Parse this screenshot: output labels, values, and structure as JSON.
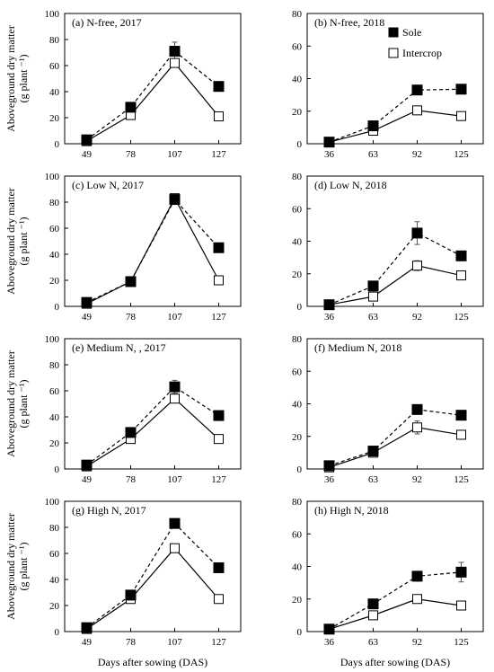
{
  "figure": {
    "ylabel_line1": "Aboveground dry matter",
    "ylabel_line2": "(g plant ⁻¹)",
    "xlabel": "Days after sowing (DAS)",
    "legend": {
      "sole": "Sole",
      "intercrop": "Intercrop"
    }
  },
  "colors": {
    "sole": "#000000",
    "intercrop": "#ffffff",
    "line": "#000000"
  },
  "chart_data": [
    {
      "type": "line",
      "title": "(a) N-free, 2017",
      "categories": [
        "49",
        "78",
        "107",
        "127"
      ],
      "ylim": [
        0,
        100
      ],
      "yticks": [
        0,
        20,
        40,
        60,
        80,
        100
      ],
      "series": [
        {
          "name": "Sole",
          "style": "dashed",
          "marker": "filled-square",
          "values": [
            3,
            28,
            71,
            44
          ],
          "errors": [
            0,
            0,
            7,
            0
          ]
        },
        {
          "name": "Intercrop",
          "style": "solid",
          "marker": "open-square",
          "values": [
            2,
            22,
            62,
            21
          ],
          "errors": [
            0,
            0,
            0,
            0
          ]
        }
      ]
    },
    {
      "type": "line",
      "title": "(b) N-free, 2018",
      "categories": [
        "36",
        "63",
        "92",
        "125"
      ],
      "ylim": [
        0,
        80
      ],
      "yticks": [
        0,
        20,
        40,
        60,
        80
      ],
      "series": [
        {
          "name": "Sole",
          "style": "dashed",
          "marker": "filled-square",
          "values": [
            1,
            11,
            33,
            33.5
          ],
          "errors": [
            0,
            0,
            2,
            0
          ]
        },
        {
          "name": "Intercrop",
          "style": "solid",
          "marker": "open-square",
          "values": [
            1,
            8,
            20.5,
            17
          ],
          "errors": [
            0,
            0,
            0,
            0
          ]
        }
      ]
    },
    {
      "type": "line",
      "title": "(c) Low N, 2017",
      "categories": [
        "49",
        "78",
        "107",
        "127"
      ],
      "ylim": [
        0,
        100
      ],
      "yticks": [
        0,
        20,
        40,
        60,
        80,
        100
      ],
      "series": [
        {
          "name": "Sole",
          "style": "dashed",
          "marker": "filled-square",
          "values": [
            3,
            19,
            82,
            45
          ],
          "errors": [
            0,
            0,
            0,
            0
          ]
        },
        {
          "name": "Intercrop",
          "style": "solid",
          "marker": "open-square",
          "values": [
            2,
            19,
            83,
            20
          ],
          "errors": [
            0,
            0,
            0,
            0
          ]
        }
      ]
    },
    {
      "type": "line",
      "title": "(d) Low N,  2018",
      "categories": [
        "36",
        "63",
        "92",
        "125"
      ],
      "ylim": [
        0,
        80
      ],
      "yticks": [
        0,
        20,
        40,
        60,
        80
      ],
      "series": [
        {
          "name": "Sole",
          "style": "dashed",
          "marker": "filled-square",
          "values": [
            1,
            12.5,
            45,
            31
          ],
          "errors": [
            0,
            0,
            7,
            2
          ]
        },
        {
          "name": "Intercrop",
          "style": "solid",
          "marker": "open-square",
          "values": [
            1,
            6,
            25,
            19
          ],
          "errors": [
            0,
            0,
            3,
            0
          ]
        }
      ]
    },
    {
      "type": "line",
      "title": "(e) Medium N, , 2017",
      "categories": [
        "49",
        "78",
        "107",
        "127"
      ],
      "ylim": [
        0,
        100
      ],
      "yticks": [
        0,
        20,
        40,
        60,
        80,
        100
      ],
      "series": [
        {
          "name": "Sole",
          "style": "dashed",
          "marker": "filled-square",
          "values": [
            3,
            28,
            63,
            41
          ],
          "errors": [
            0,
            0,
            5,
            0
          ]
        },
        {
          "name": "Intercrop",
          "style": "solid",
          "marker": "open-square",
          "values": [
            2,
            23,
            54,
            23
          ],
          "errors": [
            0,
            0,
            0,
            0
          ]
        }
      ]
    },
    {
      "type": "line",
      "title": "(f) Medium N, 2018",
      "categories": [
        "36",
        "63",
        "92",
        "125"
      ],
      "ylim": [
        0,
        80
      ],
      "yticks": [
        0,
        20,
        40,
        60,
        80
      ],
      "series": [
        {
          "name": "Sole",
          "style": "dashed",
          "marker": "filled-square",
          "values": [
            2,
            11,
            36.5,
            33
          ],
          "errors": [
            0,
            0,
            0,
            0
          ]
        },
        {
          "name": "Intercrop",
          "style": "solid",
          "marker": "open-square",
          "values": [
            1,
            10,
            25.5,
            21
          ],
          "errors": [
            0,
            0,
            4,
            0
          ]
        }
      ]
    },
    {
      "type": "line",
      "title": "(g) High N, 2017",
      "categories": [
        "49",
        "78",
        "107",
        "127"
      ],
      "ylim": [
        0,
        100
      ],
      "yticks": [
        0,
        20,
        40,
        60,
        80,
        100
      ],
      "series": [
        {
          "name": "Sole",
          "style": "dashed",
          "marker": "filled-square",
          "values": [
            3,
            28,
            83,
            49
          ],
          "errors": [
            0,
            0,
            0,
            0
          ]
        },
        {
          "name": "Intercrop",
          "style": "solid",
          "marker": "open-square",
          "values": [
            2,
            25,
            64,
            25
          ],
          "errors": [
            0,
            0,
            0,
            0
          ]
        }
      ]
    },
    {
      "type": "line",
      "title": "(h) High N, 2018",
      "categories": [
        "36",
        "63",
        "92",
        "125"
      ],
      "ylim": [
        0,
        80
      ],
      "yticks": [
        0,
        20,
        40,
        60,
        80
      ],
      "series": [
        {
          "name": "Sole",
          "style": "dashed",
          "marker": "filled-square",
          "values": [
            1.5,
            17,
            34,
            36.5
          ],
          "errors": [
            0,
            0,
            3,
            6
          ]
        },
        {
          "name": "Intercrop",
          "style": "solid",
          "marker": "open-square",
          "values": [
            1.5,
            10,
            20,
            16
          ],
          "errors": [
            0,
            0,
            0,
            0
          ]
        }
      ]
    }
  ]
}
